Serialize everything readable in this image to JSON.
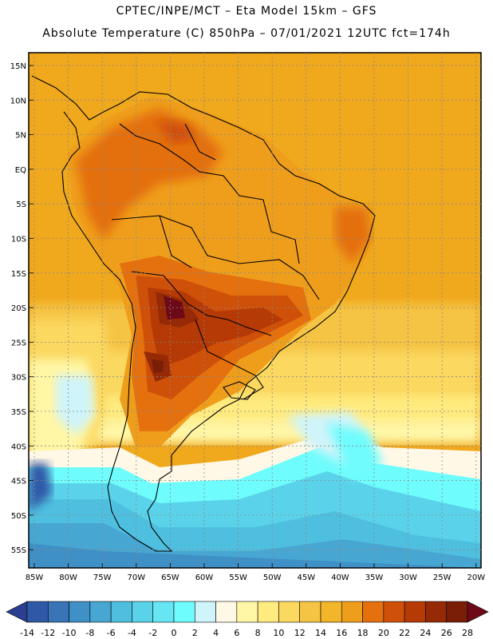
{
  "header": {
    "line1": "CPTEC/INPE/MCT –  Eta Model 15km – GFS",
    "line2": "Absolute Temperature (C) 850hPa – 07/01/2021 12UTC fct=174h"
  },
  "map": {
    "lat_labels": [
      "15N",
      "10N",
      "5N",
      "EQ",
      "5S",
      "10S",
      "15S",
      "20S",
      "25S",
      "30S",
      "35S",
      "40S",
      "45S",
      "50S",
      "55S"
    ],
    "lon_labels": [
      "85W",
      "80W",
      "75W",
      "70W",
      "65W",
      "60W",
      "55W",
      "50W",
      "45W",
      "40W",
      "35W",
      "30W",
      "25W",
      "20W"
    ],
    "colors": {
      "hot": "#d86a12",
      "warm": "#f0a81c",
      "cold_sea": "#4cc8e6",
      "cold_deep": "#3aa6d8"
    }
  },
  "colorbar": {
    "colors": [
      "#2a3f8f",
      "#2f58a6",
      "#3874b6",
      "#3f90c6",
      "#47a7d2",
      "#4fbfe0",
      "#5ad3ea",
      "#66e6f2",
      "#6ffcfc",
      "#cff4fa",
      "#fff8e6",
      "#fff6a6",
      "#ffeb7f",
      "#fbd860",
      "#f6c445",
      "#f3b52a",
      "#ef9e1c",
      "#e4700e",
      "#cf5008",
      "#b53a06",
      "#962a06",
      "#7a1e08",
      "#6e0a18"
    ],
    "labels": [
      "-14",
      "-12",
      "-10",
      "-8",
      "-6",
      "-4",
      "-2",
      "0",
      "2",
      "4",
      "6",
      "8",
      "10",
      "12",
      "14",
      "16",
      "18",
      "20",
      "22",
      "24",
      "26",
      "28"
    ]
  }
}
